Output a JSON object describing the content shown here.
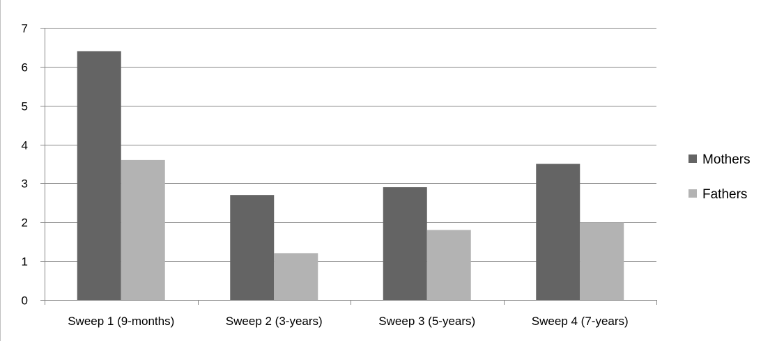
{
  "chart_data": {
    "type": "bar",
    "title": "",
    "xlabel": "",
    "ylabel": "",
    "categories": [
      "Sweep 1 (9-months)",
      "Sweep 2 (3-years)",
      "Sweep 3 (5-years)",
      "Sweep 4 (7-years)"
    ],
    "series": [
      {
        "name": "Mothers",
        "values": [
          6.4,
          2.7,
          2.9,
          3.5
        ],
        "color": "#646464"
      },
      {
        "name": "Fathers",
        "values": [
          3.6,
          1.2,
          1.8,
          2.0
        ],
        "color": "#b3b3b3"
      }
    ],
    "ylim": [
      0,
      7
    ],
    "yticks": [
      "0",
      "1",
      "2",
      "3",
      "4",
      "5",
      "6",
      "7"
    ],
    "grid": true,
    "legend_position": "right"
  }
}
